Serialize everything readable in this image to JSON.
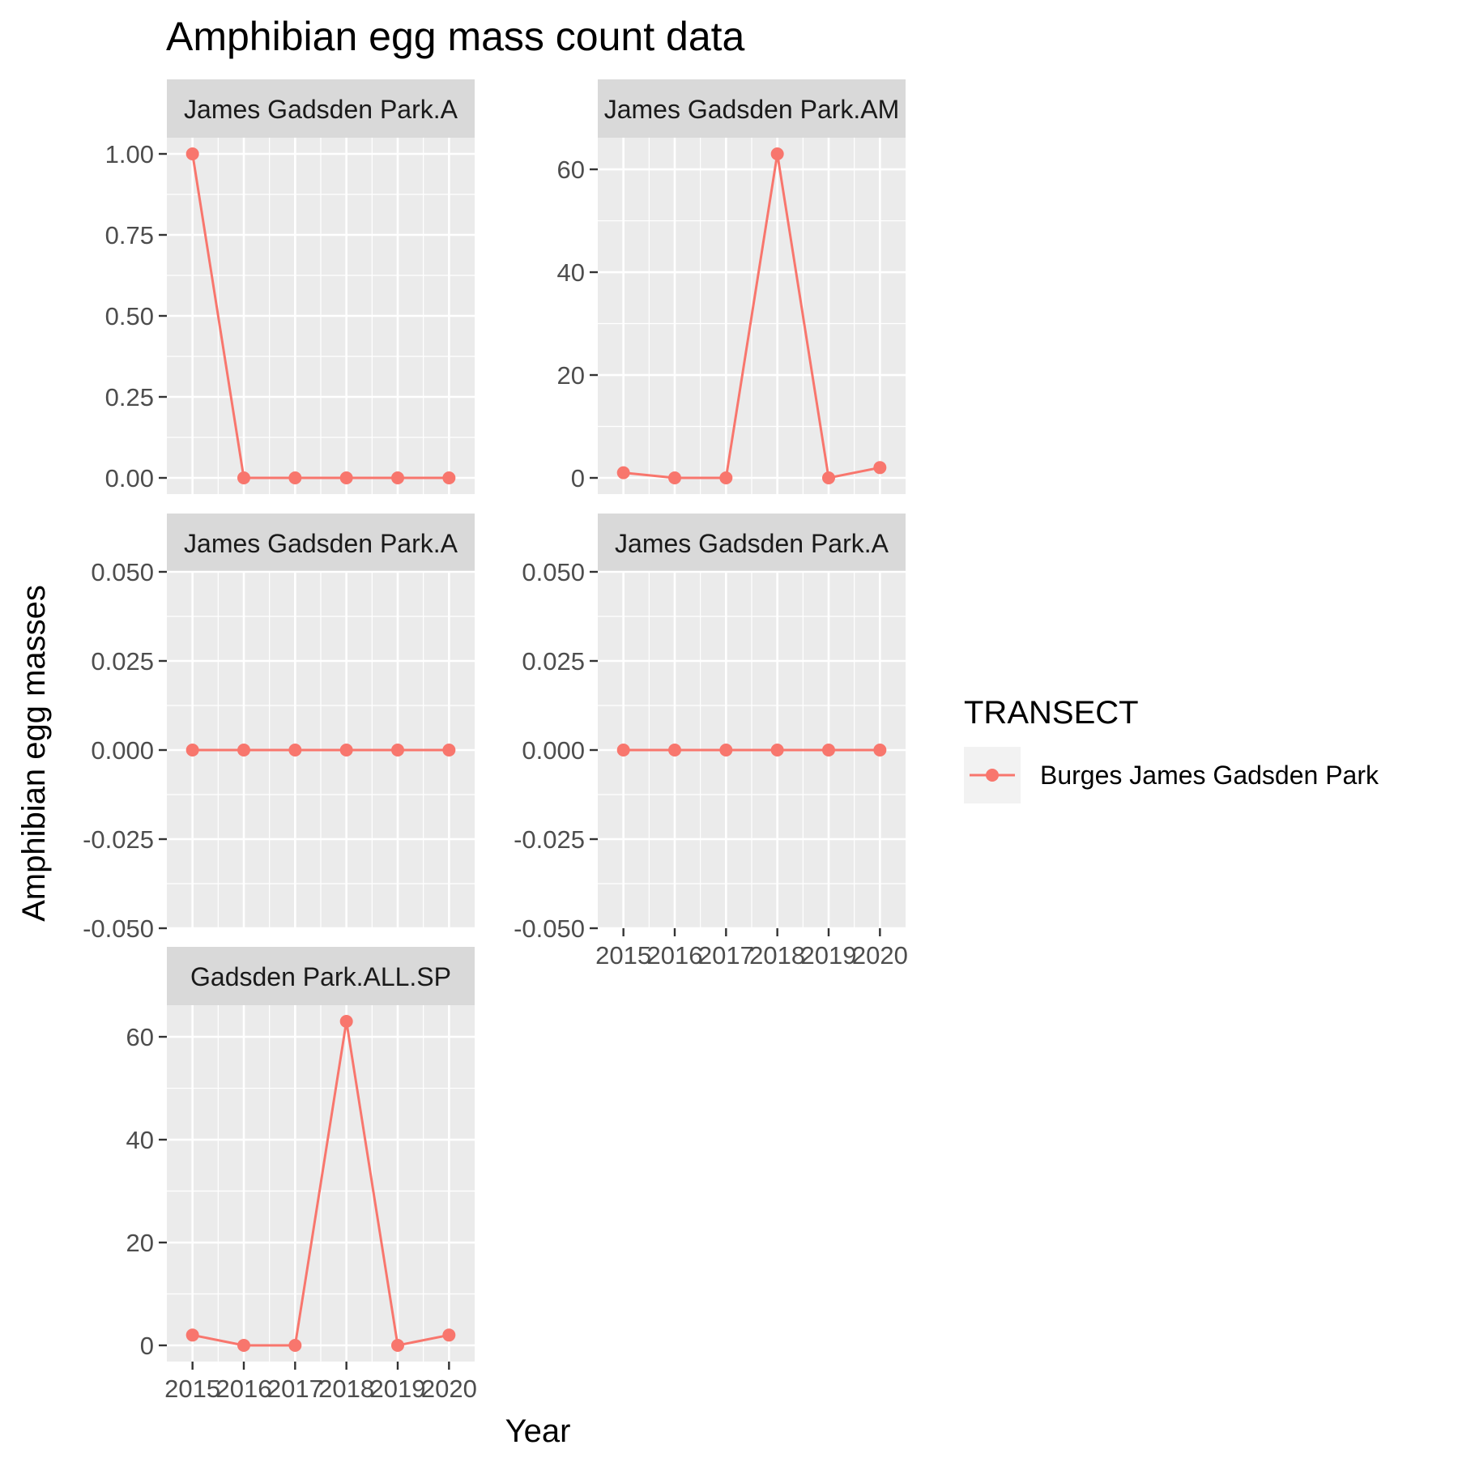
{
  "chart_data": {
    "type": "line",
    "title": "Amphibian egg mass count data",
    "xlabel": "Year",
    "ylabel": "Amphibian egg masses",
    "legend": {
      "title": "TRANSECT",
      "position": "right",
      "entries": [
        {
          "name": "Burges James Gadsden Park",
          "color": "#f8766d"
        }
      ]
    },
    "colors": {
      "series": "#f8766d",
      "panel_bg": "#ebebeb",
      "strip_bg": "#d9d9d9",
      "grid": "#ffffff"
    },
    "grid": true,
    "x_ticks": [
      "2015",
      "2016",
      "2017",
      "2018",
      "2019",
      "2020"
    ],
    "panels": [
      {
        "strip": "James Gadsden Park.A",
        "x": [
          2015,
          2016,
          2017,
          2018,
          2019,
          2020
        ],
        "values": [
          1,
          0,
          0,
          0,
          0,
          0
        ],
        "ylim": [
          -0.05,
          1.05
        ],
        "yticks": [
          "0.00",
          "0.25",
          "0.50",
          "0.75",
          "1.00"
        ],
        "ytick_values": [
          0,
          0.25,
          0.5,
          0.75,
          1.0
        ]
      },
      {
        "strip": "James Gadsden Park.AM",
        "x": [
          2015,
          2016,
          2017,
          2018,
          2019,
          2020
        ],
        "values": [
          1,
          0,
          0,
          63,
          0,
          2
        ],
        "ylim": [
          -3.15,
          66.15
        ],
        "yticks": [
          "0",
          "20",
          "40",
          "60"
        ],
        "ytick_values": [
          0,
          20,
          40,
          60
        ]
      },
      {
        "strip": "James Gadsden Park.A",
        "x": [
          2015,
          2016,
          2017,
          2018,
          2019,
          2020
        ],
        "values": [
          0,
          0,
          0,
          0,
          0,
          0
        ],
        "ylim": [
          -0.05,
          0.05
        ],
        "yticks": [
          "-0.050",
          "-0.025",
          "0.000",
          "0.025",
          "0.050"
        ],
        "ytick_values": [
          -0.05,
          -0.025,
          0,
          0.025,
          0.05
        ]
      },
      {
        "strip": "James Gadsden Park.A",
        "x": [
          2015,
          2016,
          2017,
          2018,
          2019,
          2020
        ],
        "values": [
          0,
          0,
          0,
          0,
          0,
          0
        ],
        "ylim": [
          -0.05,
          0.05
        ],
        "yticks": [
          "-0.050",
          "-0.025",
          "0.000",
          "0.025",
          "0.050"
        ],
        "ytick_values": [
          -0.05,
          -0.025,
          0,
          0.025,
          0.05
        ]
      },
      {
        "strip": "Gadsden Park.ALL.SP",
        "x": [
          2015,
          2016,
          2017,
          2018,
          2019,
          2020
        ],
        "values": [
          2,
          0,
          0,
          63,
          0,
          2
        ],
        "ylim": [
          -3.15,
          66.15
        ],
        "yticks": [
          "0",
          "20",
          "40",
          "60"
        ],
        "ytick_values": [
          0,
          20,
          40,
          60
        ]
      }
    ]
  }
}
